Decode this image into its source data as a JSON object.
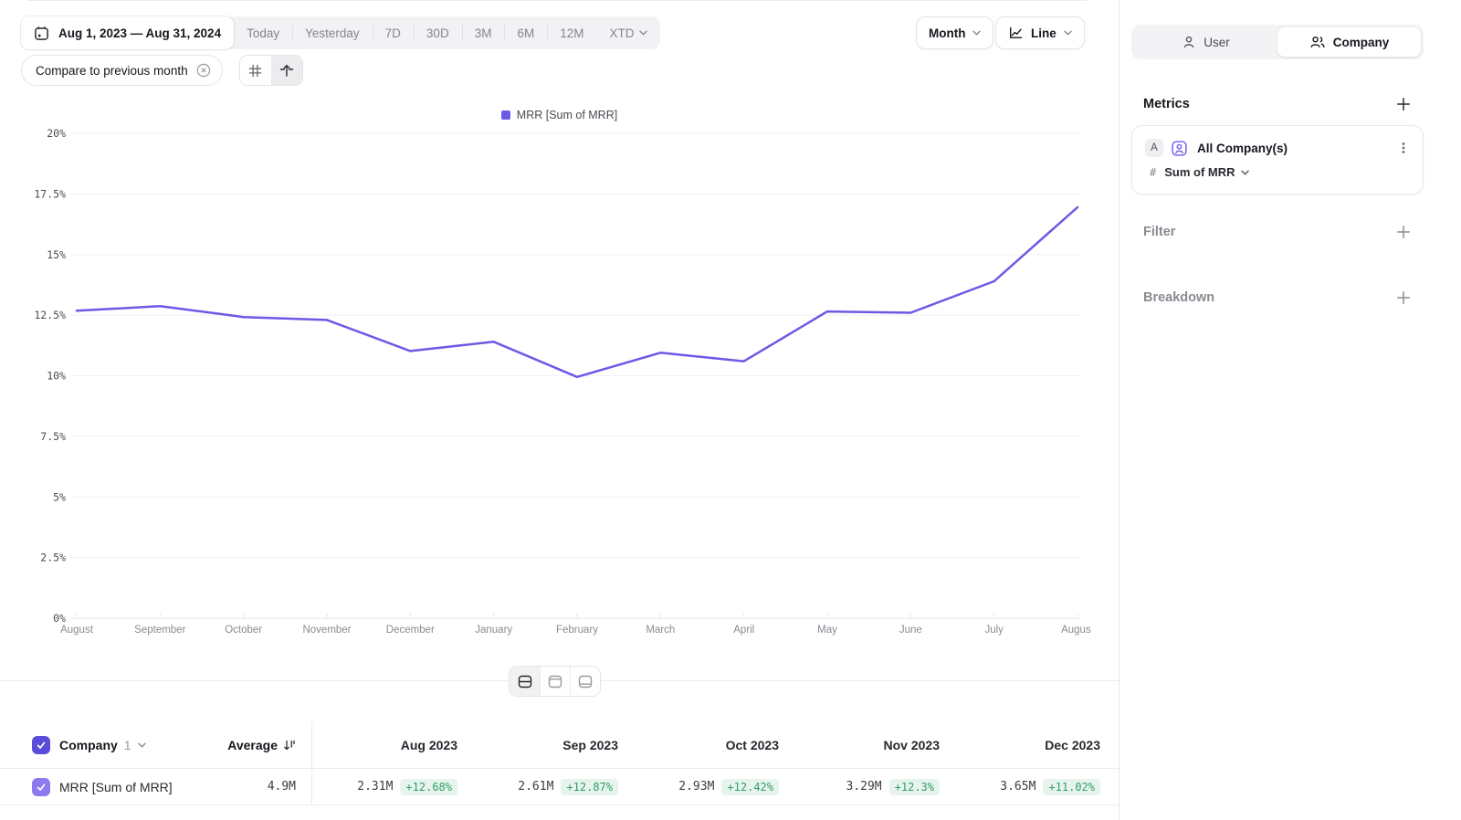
{
  "toolbar": {
    "date_range": "Aug 1, 2023 — Aug 31, 2024",
    "presets": [
      "Today",
      "Yesterday",
      "7D",
      "30D",
      "3M",
      "6M",
      "12M"
    ],
    "xtd_label": "XTD",
    "granularity_label": "Month",
    "chart_type_label": "Line",
    "compare_label": "Compare to previous month"
  },
  "sidebar": {
    "tab_user": "User",
    "tab_company": "Company",
    "metrics_title": "Metrics",
    "metric_card": {
      "badge": "A",
      "name": "All Company(s)",
      "hash": "#",
      "aggregation": "Sum of MRR"
    },
    "filter_label": "Filter",
    "breakdown_label": "Breakdown"
  },
  "chart_data": {
    "type": "line",
    "title": "",
    "legend": "MRR [Sum of MRR]",
    "legend_position": "top-center",
    "x_labels": [
      "August",
      "September",
      "October",
      "November",
      "December",
      "January",
      "February",
      "March",
      "April",
      "May",
      "June",
      "July",
      "August"
    ],
    "series": [
      {
        "name": "MRR [Sum of MRR]",
        "color": "#6c59e6",
        "values": [
          12.68,
          12.87,
          12.42,
          12.3,
          11.02,
          11.4,
          9.95,
          10.95,
          10.6,
          12.65,
          12.6,
          13.9,
          16.95
        ]
      }
    ],
    "ylim": [
      0,
      20
    ],
    "yticks": [
      0,
      2.5,
      5,
      7.5,
      10,
      12.5,
      15,
      17.5,
      20
    ],
    "ytick_suffix": "%",
    "grid": true
  },
  "table": {
    "entity_label": "Company",
    "entity_count": "1",
    "average_label": "Average",
    "columns": [
      "Aug 2023",
      "Sep 2023",
      "Oct 2023",
      "Nov 2023",
      "Dec 2023"
    ],
    "rows": [
      {
        "label": "MRR [Sum of MRR]",
        "average": "4.9M",
        "cells": [
          {
            "value": "2.31M",
            "delta": "+12.68%"
          },
          {
            "value": "2.61M",
            "delta": "+12.87%"
          },
          {
            "value": "2.93M",
            "delta": "+12.42%"
          },
          {
            "value": "3.29M",
            "delta": "+12.3%"
          },
          {
            "value": "3.65M",
            "delta": "+11.02%"
          }
        ]
      }
    ]
  },
  "colors": {
    "accent_purple": "#6c59e6",
    "header_checkbox_purple": "#5b4bdb",
    "row_checkbox_purple": "#8c7bf0",
    "metric_icon_purple": "#7c6aea",
    "positive_green": "#2f9e68",
    "positive_green_bg": "#e7f4ed"
  }
}
